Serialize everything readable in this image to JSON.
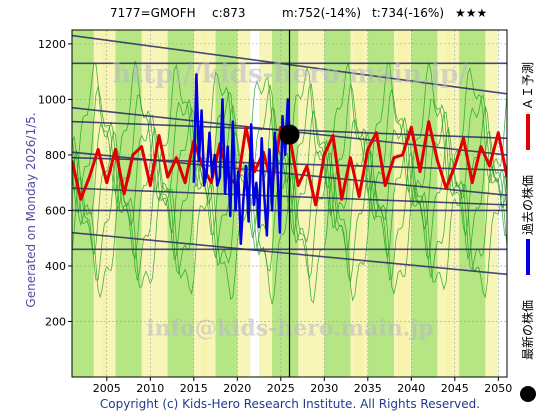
{
  "header": {
    "symbol": "7177=GMOFH",
    "current": "c:873",
    "mid": "m:752(-14%)",
    "target": "t:734(-16%)",
    "stars": "★★★"
  },
  "side_text": "Generated on Monday 2026/1/5.",
  "copyright": "Copyright (c) Kids-Hero Research Institute. All Rights Reserved.",
  "watermarks": {
    "top": "http://kids-hero.main.jp/",
    "bottom": "info@kids-hero.main.jp"
  },
  "legend": [
    {
      "label": "ＡＩ予測",
      "color": "#e00000",
      "kind": "line"
    },
    {
      "label": "過去の株価",
      "color": "#0000e0",
      "kind": "line"
    },
    {
      "label": "最新の株価",
      "color": "#000000",
      "kind": "dot"
    }
  ],
  "colors": {
    "ai_forecast": "#e00000",
    "past_price": "#0000e0",
    "latest_price": "#000000",
    "band_green": "#7ed957",
    "band_yellow": "#f6f3a8",
    "trend_lines": "#2a2a66",
    "green_lines": "#1a9e1a"
  },
  "chart_data": {
    "type": "line",
    "xlim": [
      2001,
      2051
    ],
    "ylim": [
      0,
      1250
    ],
    "x_ticks": [
      2005,
      2010,
      2015,
      2020,
      2025,
      2030,
      2035,
      2040,
      2045,
      2050
    ],
    "y_ticks": [
      200,
      400,
      600,
      800,
      1000,
      1200
    ],
    "grid": true,
    "latest": {
      "x": 2026.0,
      "y": 873
    },
    "latest_vline": 2026.0,
    "ai_forecast": {
      "x": [
        2001,
        2002,
        2003,
        2004,
        2005,
        2006,
        2007,
        2008,
        2009,
        2010,
        2011,
        2012,
        2013,
        2014,
        2015,
        2016,
        2017,
        2018,
        2019,
        2020,
        2021,
        2022,
        2023,
        2024,
        2025,
        2026,
        2027,
        2028,
        2029,
        2030,
        2031,
        2032,
        2033,
        2034,
        2035,
        2036,
        2037,
        2038,
        2039,
        2040,
        2041,
        2042,
        2043,
        2044,
        2045,
        2046,
        2047,
        2048,
        2049,
        2050,
        2051
      ],
      "y": [
        780,
        640,
        720,
        820,
        700,
        820,
        660,
        800,
        830,
        690,
        870,
        720,
        790,
        700,
        850,
        760,
        700,
        840,
        720,
        690,
        900,
        740,
        810,
        690,
        900,
        870,
        690,
        760,
        620,
        800,
        870,
        640,
        790,
        650,
        820,
        880,
        690,
        790,
        800,
        900,
        740,
        920,
        780,
        680,
        760,
        860,
        700,
        830,
        760,
        880,
        720
      ]
    },
    "past_price": {
      "x": [
        2015.0,
        2015.3,
        2015.6,
        2015.9,
        2016.2,
        2016.5,
        2016.8,
        2017.1,
        2017.4,
        2017.7,
        2018.0,
        2018.3,
        2018.6,
        2018.9,
        2019.2,
        2019.5,
        2019.8,
        2020.1,
        2020.4,
        2020.7,
        2021.0,
        2021.3,
        2021.6,
        2021.9,
        2022.2,
        2022.5,
        2022.8,
        2023.1,
        2023.4,
        2023.7,
        2024.0,
        2024.3,
        2024.6,
        2024.9,
        2025.2,
        2025.5,
        2025.8,
        2026.0
      ],
      "y": [
        700,
        1090,
        780,
        960,
        690,
        740,
        880,
        720,
        800,
        690,
        720,
        1000,
        660,
        830,
        580,
        920,
        600,
        740,
        480,
        640,
        760,
        560,
        910,
        620,
        700,
        540,
        860,
        650,
        510,
        820,
        600,
        880,
        760,
        520,
        940,
        800,
        1000,
        873
      ]
    },
    "trend_lines": [
      {
        "x": [
          2001,
          2051
        ],
        "y": [
          1230,
          1020
        ]
      },
      {
        "x": [
          2001,
          2051
        ],
        "y": [
          1130,
          1130
        ]
      },
      {
        "x": [
          2001,
          2051
        ],
        "y": [
          970,
          800
        ]
      },
      {
        "x": [
          2001,
          2051
        ],
        "y": [
          920,
          860
        ]
      },
      {
        "x": [
          2001,
          2051
        ],
        "y": [
          810,
          655
        ]
      },
      {
        "x": [
          2001,
          2051
        ],
        "y": [
          790,
          745
        ]
      },
      {
        "x": [
          2001,
          2051
        ],
        "y": [
          680,
          620
        ]
      },
      {
        "x": [
          2001,
          2051
        ],
        "y": [
          600,
          600
        ]
      },
      {
        "x": [
          2001,
          2051
        ],
        "y": [
          520,
          370
        ]
      },
      {
        "x": [
          2001,
          2051
        ],
        "y": [
          460,
          460
        ]
      }
    ]
  }
}
